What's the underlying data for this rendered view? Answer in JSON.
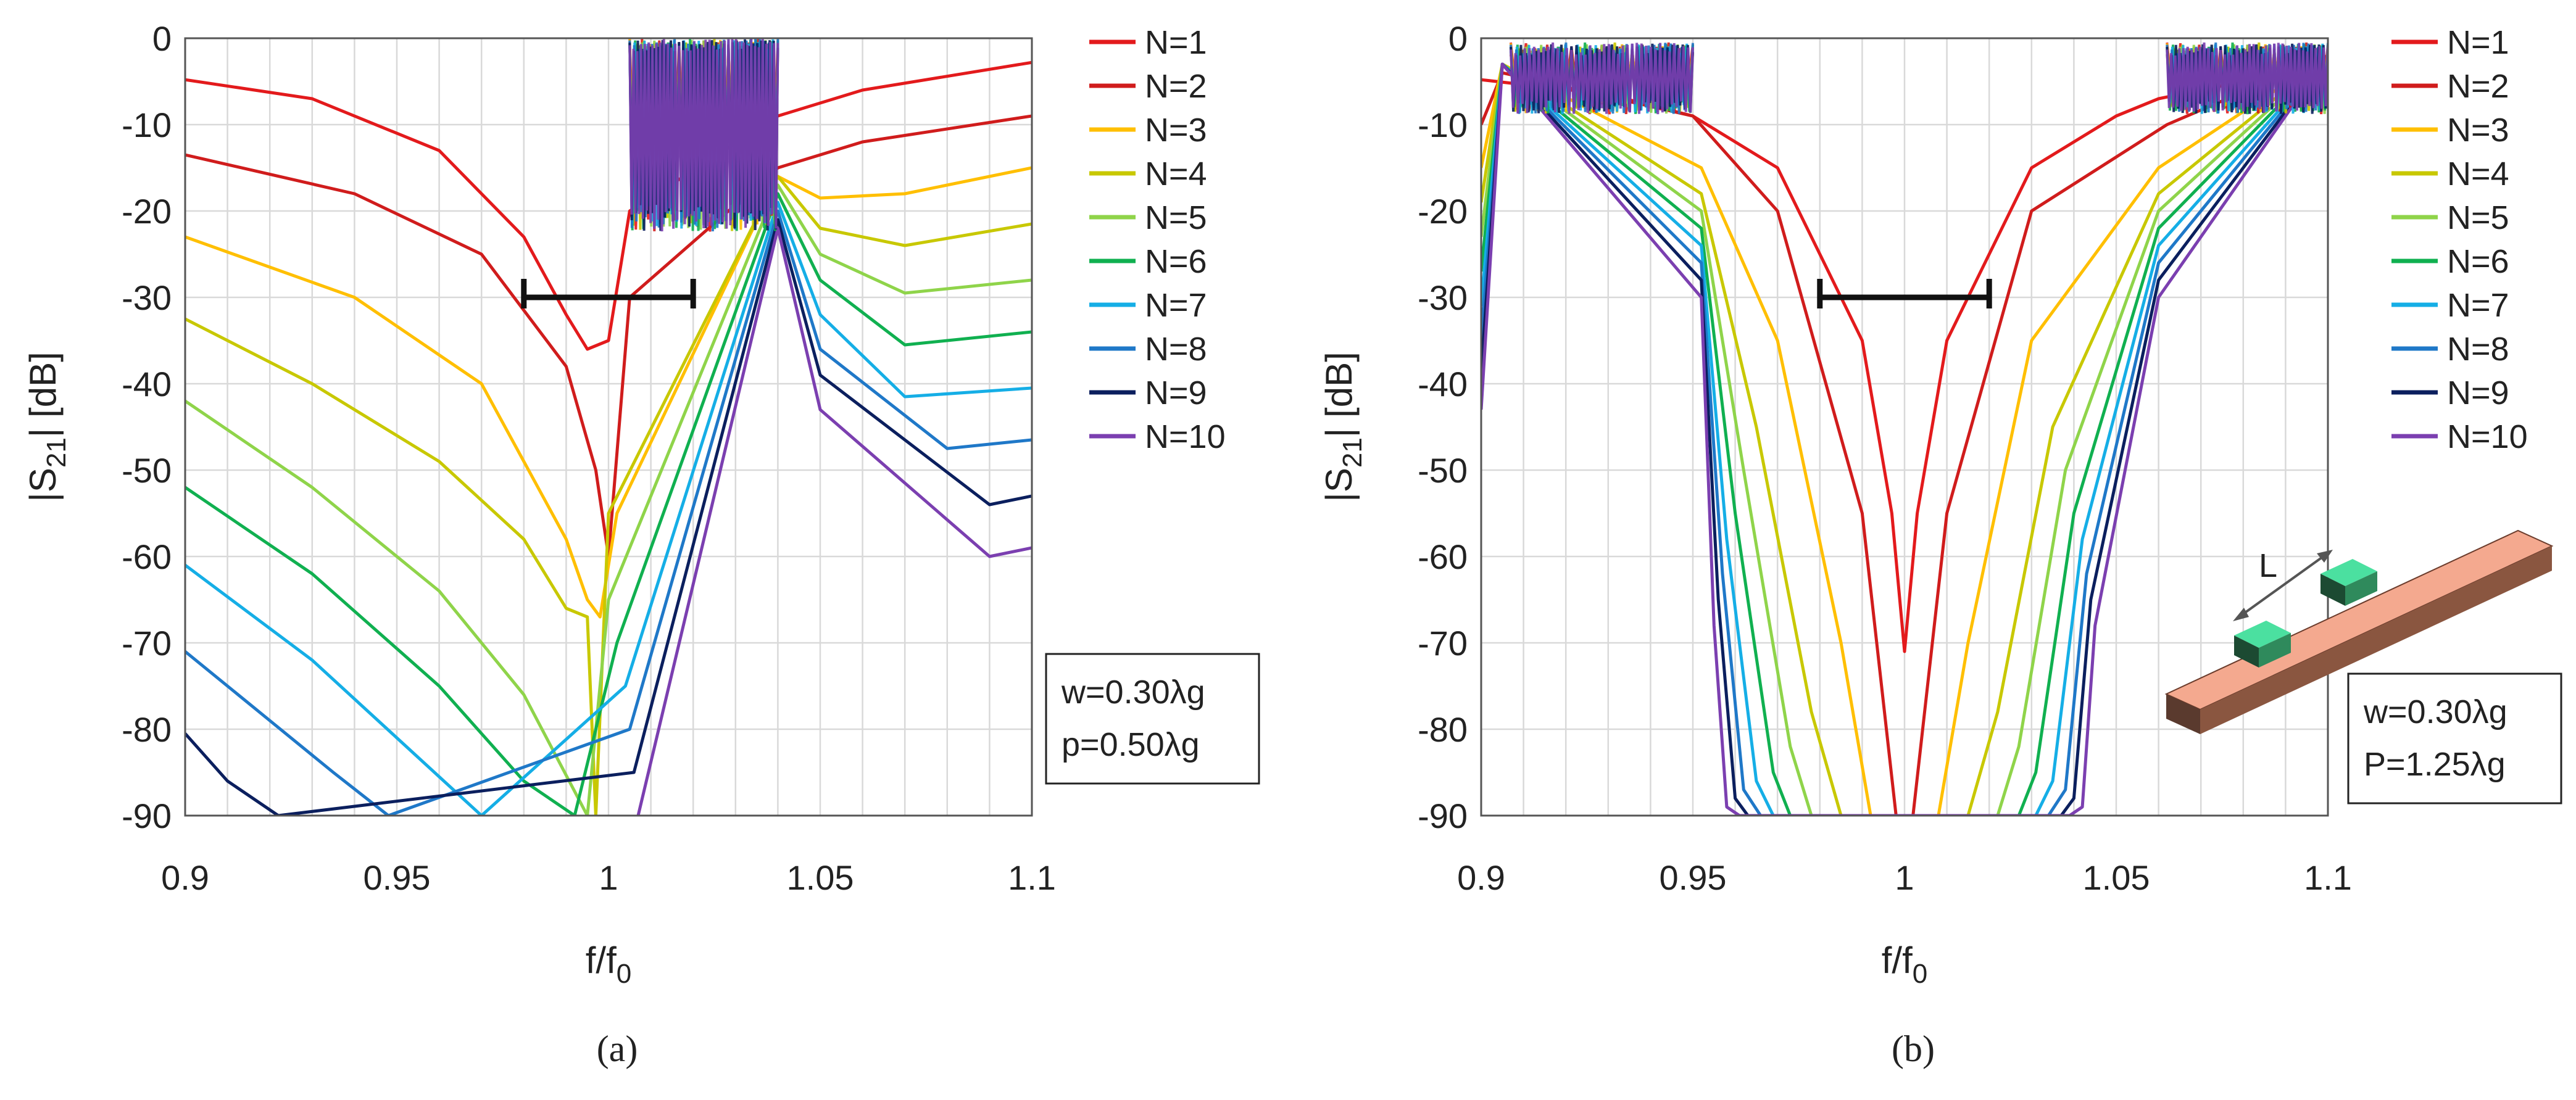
{
  "legend_colors": [
    "#e31a1c",
    "#d01c1c",
    "#ffbf00",
    "#c8c800",
    "#8fd44a",
    "#10b050",
    "#15aee6",
    "#1f78c8",
    "#0b1f5e",
    "#7b3fb0"
  ],
  "chart_data": [
    {
      "type": "line",
      "panel": "a",
      "caption": "(a)",
      "xlabel": "f/f",
      "xlabel_sub": "0",
      "ylabel_pre": "|S",
      "ylabel_sub": "21",
      "ylabel_post": "| [dB]",
      "xlim": [
        0.9,
        1.1
      ],
      "ylim": [
        -90,
        0
      ],
      "xticks": [
        "0.9",
        "0.95",
        "1",
        "1.05",
        "1.1"
      ],
      "yticks": [
        "0",
        "-10",
        "-20",
        "-30",
        "-40",
        "-50",
        "-60",
        "-70",
        "-80",
        "-90"
      ],
      "legend": [
        "N=1",
        "N=2",
        "N=3",
        "N=4",
        "N=5",
        "N=6",
        "N=7",
        "N=8",
        "N=9",
        "N=10"
      ],
      "annotation": [
        "w=0.30λg",
        "p=0.50λg"
      ],
      "bracket": {
        "x1": 0.98,
        "x2": 1.02,
        "y": -30
      },
      "passband": [
        1.005,
        1.04
      ],
      "series": [
        {
          "name": "N=1",
          "x": [
            0.9,
            0.93,
            0.96,
            0.98,
            0.99,
            0.995,
            1.0,
            1.005,
            1.04,
            1.06,
            1.1
          ],
          "y": [
            -4.8,
            -7,
            -13,
            -23,
            -32,
            -36,
            -35,
            -20,
            -9,
            -6,
            -2.8
          ]
        },
        {
          "name": "N=2",
          "x": [
            0.9,
            0.94,
            0.97,
            0.99,
            0.997,
            1.0,
            1.005,
            1.04,
            1.06,
            1.1
          ],
          "y": [
            -13.5,
            -18,
            -25,
            -38,
            -50,
            -60,
            -30,
            -15,
            -12,
            -9
          ]
        },
        {
          "name": "N=3",
          "x": [
            0.9,
            0.94,
            0.97,
            0.99,
            0.995,
            0.998,
            1.002,
            1.04,
            1.05,
            1.07,
            1.1
          ],
          "y": [
            -23,
            -30,
            -40,
            -58,
            -65,
            -67,
            -55,
            -16,
            -18.5,
            -18,
            -15
          ]
        },
        {
          "name": "N=4",
          "x": [
            0.9,
            0.93,
            0.96,
            0.98,
            0.99,
            0.995,
            0.997,
            1.0,
            1.04,
            1.05,
            1.07,
            1.1
          ],
          "y": [
            -32.5,
            -40,
            -49,
            -58,
            -66,
            -67,
            -90,
            -55,
            -16,
            -22,
            -24,
            -21.5
          ]
        },
        {
          "name": "N=5",
          "x": [
            0.9,
            0.93,
            0.96,
            0.98,
            0.995,
            1.0,
            1.04,
            1.05,
            1.07,
            1.1
          ],
          "y": [
            -42,
            -52,
            -64,
            -76,
            -90,
            -65,
            -17,
            -25,
            -29.5,
            -28
          ]
        },
        {
          "name": "N=6",
          "x": [
            0.9,
            0.93,
            0.96,
            0.98,
            0.992,
            1.002,
            1.04,
            1.05,
            1.07,
            1.1
          ],
          "y": [
            -52,
            -62,
            -75,
            -86,
            -90,
            -70,
            -18,
            -28,
            -35.5,
            -34
          ]
        },
        {
          "name": "N=7",
          "x": [
            0.9,
            0.93,
            0.95,
            0.97,
            1.004,
            1.04,
            1.05,
            1.07,
            1.1
          ],
          "y": [
            -61,
            -72,
            -81,
            -90,
            -75,
            -19,
            -32,
            -41.5,
            -40.5
          ]
        },
        {
          "name": "N=8",
          "x": [
            0.9,
            0.92,
            0.935,
            0.948,
            1.005,
            1.04,
            1.05,
            1.08,
            1.1
          ],
          "y": [
            -71,
            -79,
            -85,
            -90,
            -80,
            -20,
            -36,
            -47.5,
            -46.5
          ]
        },
        {
          "name": "N=9",
          "x": [
            0.9,
            0.91,
            0.922,
            1.006,
            1.04,
            1.05,
            1.09,
            1.1
          ],
          "y": [
            -80.5,
            -86,
            -90,
            -85,
            -21,
            -39,
            -54,
            -53
          ]
        },
        {
          "name": "N=10",
          "x": [
            1.007,
            1.04,
            1.05,
            1.09,
            1.1
          ],
          "y": [
            -90,
            -22,
            -43,
            -60,
            -59
          ]
        }
      ]
    },
    {
      "type": "line",
      "panel": "b",
      "caption": "(b)",
      "xlabel": "f/f",
      "xlabel_sub": "0",
      "ylabel_pre": "|S",
      "ylabel_sub": "21",
      "ylabel_post": "| [dB]",
      "xlim": [
        0.9,
        1.1
      ],
      "ylim": [
        -90,
        0
      ],
      "xticks": [
        "0.9",
        "0.95",
        "1",
        "1.05",
        "1.1"
      ],
      "yticks": [
        "0",
        "-10",
        "-20",
        "-30",
        "-40",
        "-50",
        "-60",
        "-70",
        "-80",
        "-90"
      ],
      "legend": [
        "N=1",
        "N=2",
        "N=3",
        "N=4",
        "N=5",
        "N=6",
        "N=7",
        "N=8",
        "N=9",
        "N=10"
      ],
      "annotation": [
        "w=0.30λg",
        "P=1.25λg"
      ],
      "inset_label": "L",
      "bracket": {
        "x1": 0.98,
        "x2": 1.02,
        "y": -30
      },
      "passbands": [
        [
          0.907,
          0.95
        ],
        [
          1.062,
          1.1
        ]
      ],
      "series": [
        {
          "name": "N=1",
          "x": [
            0.9,
            0.93,
            0.95,
            0.97,
            0.99,
            0.997,
            1.0,
            1.003,
            1.01,
            1.03,
            1.05,
            1.06,
            1.08,
            1.1
          ],
          "y": [
            -4.8,
            -6.5,
            -9,
            -15,
            -35,
            -55,
            -71,
            -55,
            -35,
            -15,
            -9,
            -7,
            -5,
            -3
          ]
        },
        {
          "name": "N=2",
          "x": [
            0.9,
            0.905,
            0.95,
            0.97,
            0.99,
            0.998,
            1.002,
            1.01,
            1.03,
            1.062,
            1.1
          ],
          "y": [
            -10,
            -4,
            -9,
            -20,
            -55,
            -90,
            -90,
            -55,
            -20,
            -10,
            -2
          ]
        },
        {
          "name": "N=3",
          "x": [
            0.9,
            0.905,
            0.952,
            0.97,
            0.985,
            0.992,
            1.008,
            1.015,
            1.03,
            1.06,
            1.1
          ],
          "y": [
            -15,
            -3,
            -15,
            -35,
            -70,
            -90,
            -90,
            -70,
            -35,
            -15,
            -2
          ]
        },
        {
          "name": "N=4",
          "x": [
            0.9,
            0.905,
            0.952,
            0.965,
            0.978,
            0.985,
            1.015,
            1.022,
            1.035,
            1.06,
            1.1
          ],
          "y": [
            -19,
            -3,
            -18,
            -45,
            -78,
            -90,
            -90,
            -78,
            -45,
            -18,
            -2
          ]
        },
        {
          "name": "N=5",
          "x": [
            0.9,
            0.905,
            0.952,
            0.962,
            0.973,
            0.978,
            1.022,
            1.027,
            1.038,
            1.06,
            1.1
          ],
          "y": [
            -23,
            -3,
            -20,
            -50,
            -82,
            -90,
            -90,
            -82,
            -50,
            -20,
            -2
          ]
        },
        {
          "name": "N=6",
          "x": [
            0.9,
            0.905,
            0.952,
            0.96,
            0.969,
            0.973,
            1.027,
            1.031,
            1.04,
            1.06,
            1.1
          ],
          "y": [
            -27,
            -3,
            -22,
            -55,
            -85,
            -90,
            -90,
            -85,
            -55,
            -22,
            -2
          ]
        },
        {
          "name": "N=7",
          "x": [
            0.9,
            0.905,
            0.952,
            0.958,
            0.965,
            0.969,
            1.031,
            1.035,
            1.042,
            1.06,
            1.1
          ],
          "y": [
            -31,
            -3,
            -24,
            -58,
            -86,
            -90,
            -90,
            -86,
            -58,
            -24,
            -2
          ]
        },
        {
          "name": "N=8",
          "x": [
            0.9,
            0.905,
            0.952,
            0.957,
            0.962,
            0.966,
            1.034,
            1.038,
            1.043,
            1.06,
            1.1
          ],
          "y": [
            -35,
            -3,
            -26,
            -62,
            -87,
            -90,
            -90,
            -87,
            -62,
            -26,
            -2
          ]
        },
        {
          "name": "N=9",
          "x": [
            0.9,
            0.905,
            0.952,
            0.956,
            0.96,
            0.963,
            1.037,
            1.04,
            1.044,
            1.06,
            1.1
          ],
          "y": [
            -39,
            -3,
            -28,
            -65,
            -88,
            -90,
            -90,
            -88,
            -65,
            -28,
            -2
          ]
        },
        {
          "name": "N=10",
          "x": [
            0.9,
            0.905,
            0.952,
            0.955,
            0.958,
            0.961,
            1.039,
            1.042,
            1.045,
            1.06,
            1.1
          ],
          "y": [
            -43,
            -3,
            -30,
            -68,
            -89,
            -90,
            -90,
            -89,
            -68,
            -30,
            -2
          ]
        }
      ]
    }
  ]
}
